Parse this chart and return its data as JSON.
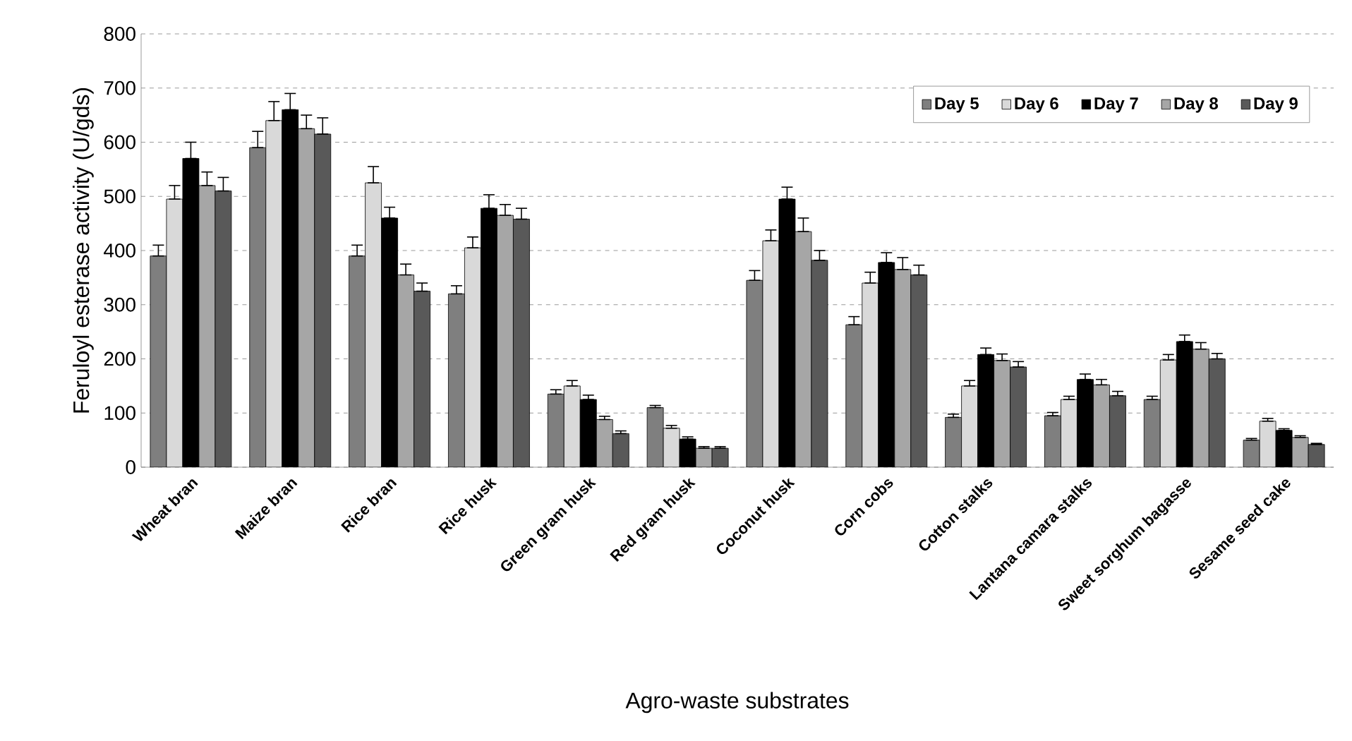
{
  "chart_data": {
    "type": "bar",
    "xlabel": "Agro-waste substrates",
    "ylabel": "Feruloyl esterase activity (U/gds)",
    "categories": [
      "Wheat bran",
      "Maize bran",
      "Rice bran",
      "Rice husk",
      "Green gram husk",
      "Red gram husk",
      "Coconut husk",
      "Corn cobs",
      "Cotton stalks",
      "Lantana camara stalks",
      "Sweet sorghum bagasse",
      "Sesame seed cake"
    ],
    "series": [
      {
        "name": "Day 5",
        "color": "#7f7f7f",
        "values": [
          390,
          590,
          390,
          320,
          135,
          110,
          345,
          263,
          92,
          95,
          125,
          50
        ],
        "errors": [
          [
            390,
            410
          ],
          [
            590,
            620
          ],
          [
            390,
            410
          ],
          [
            320,
            335
          ],
          [
            135,
            143
          ],
          [
            110,
            114
          ],
          [
            345,
            363
          ],
          [
            263,
            278
          ],
          [
            92,
            98
          ],
          [
            95,
            101
          ],
          [
            125,
            131
          ],
          [
            50,
            53
          ]
        ]
      },
      {
        "name": "Day 6",
        "color": "#d9d9d9",
        "values": [
          495,
          640,
          525,
          405,
          150,
          72,
          418,
          340,
          150,
          125,
          198,
          85
        ],
        "errors": [
          [
            495,
            520
          ],
          [
            640,
            675
          ],
          [
            525,
            555
          ],
          [
            405,
            425
          ],
          [
            150,
            160
          ],
          [
            72,
            77
          ],
          [
            418,
            438
          ],
          [
            340,
            360
          ],
          [
            150,
            160
          ],
          [
            125,
            131
          ],
          [
            198,
            208
          ],
          [
            85,
            90
          ]
        ]
      },
      {
        "name": "Day 7",
        "color": "#000000",
        "values": [
          570,
          660,
          460,
          478,
          125,
          52,
          495,
          378,
          208,
          162,
          232,
          68
        ],
        "errors": [
          [
            570,
            600
          ],
          [
            660,
            690
          ],
          [
            460,
            480
          ],
          [
            478,
            503
          ],
          [
            125,
            133
          ],
          [
            52,
            56
          ],
          [
            495,
            517
          ],
          [
            378,
            396
          ],
          [
            208,
            220
          ],
          [
            162,
            172
          ],
          [
            232,
            244
          ],
          [
            68,
            71
          ]
        ]
      },
      {
        "name": "Day 8",
        "color": "#a6a6a6",
        "values": [
          520,
          625,
          355,
          465,
          88,
          35,
          435,
          365,
          197,
          152,
          218,
          55
        ],
        "errors": [
          [
            520,
            545
          ],
          [
            625,
            650
          ],
          [
            355,
            375
          ],
          [
            465,
            485
          ],
          [
            88,
            94
          ],
          [
            35,
            38
          ],
          [
            435,
            460
          ],
          [
            365,
            387
          ],
          [
            197,
            209
          ],
          [
            152,
            162
          ],
          [
            218,
            230
          ],
          [
            55,
            58
          ]
        ]
      },
      {
        "name": "Day 9",
        "color": "#595959",
        "values": [
          510,
          615,
          325,
          458,
          62,
          35,
          382,
          355,
          185,
          132,
          200,
          42
        ],
        "errors": [
          [
            510,
            535
          ],
          [
            615,
            645
          ],
          [
            325,
            340
          ],
          [
            458,
            478
          ],
          [
            62,
            67
          ],
          [
            35,
            38
          ],
          [
            382,
            400
          ],
          [
            355,
            373
          ],
          [
            185,
            195
          ],
          [
            132,
            140
          ],
          [
            200,
            210
          ],
          [
            42,
            44
          ]
        ]
      }
    ],
    "ylim": [
      0,
      800
    ],
    "yticks": [
      0,
      100,
      200,
      300,
      400,
      500,
      600,
      700,
      800
    ],
    "grid": "y",
    "legend": "top right"
  }
}
